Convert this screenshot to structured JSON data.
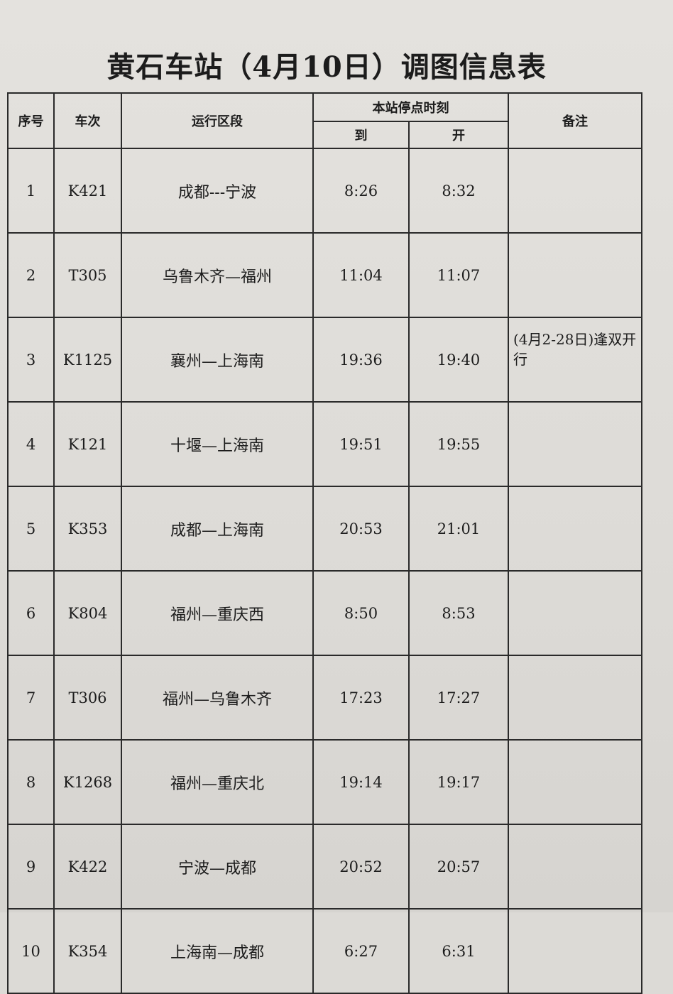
{
  "title": "黄石车站（4月10日）调图信息表",
  "headers": {
    "seq": "序号",
    "train": "车次",
    "route": "运行区段",
    "stop_time": "本站停点时刻",
    "arrive": "到",
    "depart": "开",
    "note": "备注"
  },
  "rows": [
    {
      "seq": "1",
      "train": "K421",
      "route": "成都---宁波",
      "arrive": "8:26",
      "depart": "8:32",
      "note": ""
    },
    {
      "seq": "2",
      "train": "T305",
      "route": "乌鲁木齐—福州",
      "arrive": "11:04",
      "depart": "11:07",
      "note": ""
    },
    {
      "seq": "3",
      "train": "K1125",
      "route": "襄州—上海南",
      "arrive": "19:36",
      "depart": "19:40",
      "note": "(4月2-28日)逢双开行"
    },
    {
      "seq": "4",
      "train": "K121",
      "route": "十堰—上海南",
      "arrive": "19:51",
      "depart": "19:55",
      "note": ""
    },
    {
      "seq": "5",
      "train": "K353",
      "route": "成都—上海南",
      "arrive": "20:53",
      "depart": "21:01",
      "note": ""
    },
    {
      "seq": "6",
      "train": "K804",
      "route": "福州—重庆西",
      "arrive": "8:50",
      "depart": "8:53",
      "note": ""
    },
    {
      "seq": "7",
      "train": "T306",
      "route": "福州—乌鲁木齐",
      "arrive": "17:23",
      "depart": "17:27",
      "note": ""
    },
    {
      "seq": "8",
      "train": "K1268",
      "route": "福州—重庆北",
      "arrive": "19:14",
      "depart": "19:17",
      "note": ""
    },
    {
      "seq": "9",
      "train": "K422",
      "route": "宁波—成都",
      "arrive": "20:52",
      "depart": "20:57",
      "note": ""
    },
    {
      "seq": "10",
      "train": "K354",
      "route": "上海南—成都",
      "arrive": "6:27",
      "depart": "6:31",
      "note": ""
    }
  ]
}
